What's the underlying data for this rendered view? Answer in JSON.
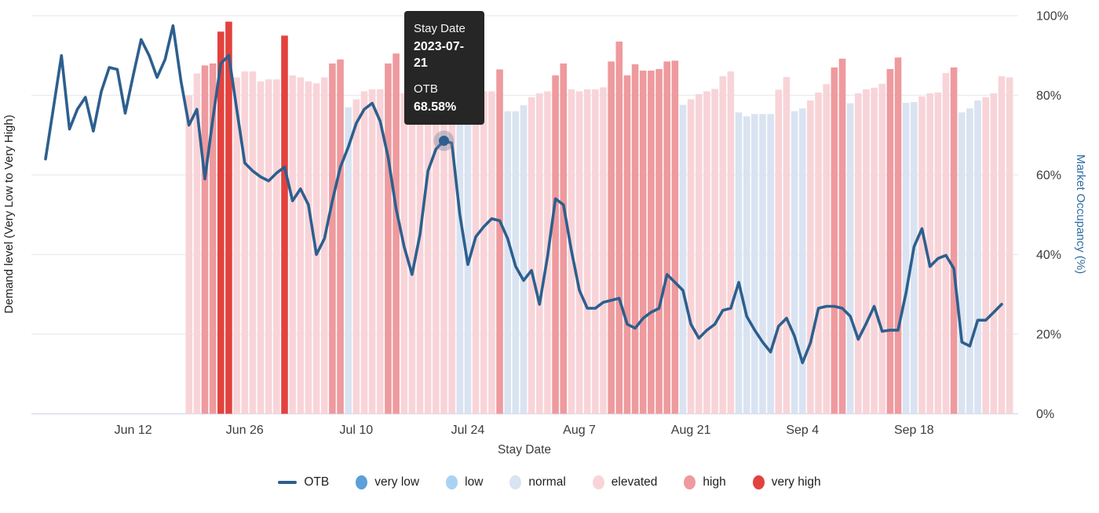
{
  "axes": {
    "left_label": "Demand level (Very Low to Very High)",
    "right_label": "Market Occupancy (%)",
    "x_label": "Stay Date",
    "x_ticks": [
      "Jun 12",
      "Jun 26",
      "Jul 10",
      "Jul 24",
      "Aug 7",
      "Aug 21",
      "Sep 4",
      "Sep 18"
    ],
    "y_ticks": [
      "0%",
      "20%",
      "40%",
      "60%",
      "80%",
      "100%"
    ]
  },
  "tooltip": {
    "title_label": "Stay Date",
    "date": "2023-07-21",
    "series_label": "OTB",
    "value": "68.58%"
  },
  "legend": {
    "otb_label": "OTB",
    "items": [
      {
        "id": "very_low",
        "label": "very low",
        "color": "#5ba0d8"
      },
      {
        "id": "low",
        "label": "low",
        "color": "#a9d2f2"
      },
      {
        "id": "normal",
        "label": "normal",
        "color": "#d9e3f1"
      },
      {
        "id": "elevated",
        "label": "elevated",
        "color": "#f8d4d8"
      },
      {
        "id": "high",
        "label": "high",
        "color": "#ee9a9e"
      },
      {
        "id": "very_high",
        "label": "very high",
        "color": "#e2423e"
      }
    ]
  },
  "colors": {
    "otb_line": "#2d5f8e",
    "right_axis_label": "#2e6da4",
    "gridline": "#ebebf0",
    "bottom_axis": "#d9dcea",
    "tooltip_bg": "#262626",
    "tick_text": "#3c3c3c",
    "very_low": "#5ba0d8",
    "low": "#a9d2f2",
    "normal": "#d9e3f1",
    "elevated": "#f8d4d8",
    "high": "#ee9a9e",
    "very_high": "#e2423e"
  },
  "chart_data": {
    "type": "combo",
    "description": "Daily hotel market demand-level bars (categorical color) with OTB occupancy line overlay",
    "x_axis": {
      "label": "Stay Date",
      "start_date": "2023-06-01",
      "end_date": "2023-09-30",
      "tick_labels": [
        "Jun 12",
        "Jun 26",
        "Jul 10",
        "Jul 24",
        "Aug 7",
        "Aug 21",
        "Sep 4",
        "Sep 18"
      ],
      "tick_day_offsets": [
        11,
        25,
        39,
        53,
        67,
        81,
        95,
        109
      ]
    },
    "y_right_axis": {
      "label": "Market Occupancy (%)",
      "range": [
        0,
        100
      ],
      "tick_values": [
        0,
        20,
        40,
        60,
        80,
        100
      ],
      "tick_labels": [
        "0%",
        "20%",
        "40%",
        "60%",
        "80%",
        "100%"
      ]
    },
    "y_left_axis": {
      "label": "Demand level (Very Low to Very High)",
      "categories": [
        "very low",
        "low",
        "normal",
        "elevated",
        "high",
        "very high"
      ]
    },
    "grid": "horizontal",
    "legend_position": "bottom",
    "line_series": {
      "name": "OTB",
      "unit": "%",
      "start_date": "2023-06-01",
      "start_day_offset": 0,
      "values": [
        64,
        77,
        90,
        71.5,
        76.5,
        79.5,
        71,
        81,
        87,
        86.5,
        75.5,
        85,
        94,
        90,
        84.5,
        89,
        97.5,
        83.5,
        72.5,
        76.5,
        59,
        74,
        88,
        90,
        76.5,
        63,
        61,
        59.5,
        58.5,
        60.5,
        62,
        53.5,
        56.5,
        52.5,
        40,
        44,
        53.5,
        62,
        67,
        73,
        76.5,
        78,
        73.5,
        64.5,
        51.5,
        42,
        35,
        45,
        61,
        66.5,
        68.58,
        68,
        50,
        37.5,
        44.5,
        47,
        49,
        48.5,
        44,
        37,
        33.5,
        36,
        27.5,
        39.5,
        54,
        52.5,
        41,
        31,
        26.5,
        26.5,
        28,
        28.5,
        29,
        22.5,
        21.5,
        24,
        25.5,
        26.5,
        35,
        33,
        31,
        22.5,
        19,
        21,
        22.5,
        26,
        26.5,
        33,
        24.5,
        21,
        18,
        15.5,
        22,
        24,
        19.5,
        12.8,
        17.8,
        26.5,
        27,
        27,
        26.5,
        24.5,
        18.7,
        22.7,
        27,
        20.7,
        21,
        21,
        30.4,
        42,
        46.5,
        37,
        39,
        39.8,
        36.5,
        18,
        17,
        23.5,
        23.5,
        25.5,
        27.5
      ]
    },
    "bar_series": {
      "name": "demand level (bar height = market occupancy %)",
      "start_date": "2023-06-19",
      "start_day_offset": 18,
      "levels": [
        "elevated",
        "elevated",
        "high",
        "high",
        "very_high",
        "very_high",
        "elevated",
        "elevated",
        "elevated",
        "elevated",
        "elevated",
        "elevated",
        "very_high",
        "elevated",
        "elevated",
        "elevated",
        "elevated",
        "elevated",
        "high",
        "high",
        "normal",
        "elevated",
        "elevated",
        "elevated",
        "elevated",
        "high",
        "high",
        "elevated",
        "elevated",
        "elevated",
        "elevated",
        "elevated",
        "elevated",
        "elevated",
        "normal",
        "normal",
        "elevated",
        "elevated",
        "elevated",
        "high",
        "normal",
        "normal",
        "normal",
        "elevated",
        "elevated",
        "elevated",
        "high",
        "high",
        "elevated",
        "elevated",
        "elevated",
        "elevated",
        "elevated",
        "high",
        "high",
        "high",
        "high",
        "high",
        "high",
        "high",
        "high",
        "high",
        "normal",
        "elevated",
        "elevated",
        "elevated",
        "elevated",
        "elevated",
        "elevated",
        "normal",
        "normal",
        "normal",
        "normal",
        "normal",
        "elevated",
        "elevated",
        "normal",
        "normal",
        "elevated",
        "elevated",
        "elevated",
        "high",
        "high",
        "normal",
        "elevated",
        "elevated",
        "elevated",
        "elevated",
        "high",
        "high",
        "normal",
        "normal",
        "elevated",
        "elevated",
        "elevated",
        "elevated",
        "high",
        "normal",
        "normal",
        "normal",
        "elevated",
        "elevated",
        "elevated",
        "elevated"
      ],
      "occupancy_values": [
        80,
        85.5,
        87.5,
        88,
        96,
        98.5,
        84.5,
        86,
        86,
        83.5,
        84,
        84,
        95,
        85,
        84.5,
        83.5,
        83,
        84.5,
        88,
        89,
        77,
        79,
        81,
        81.5,
        81.5,
        88,
        90.5,
        80.5,
        80.5,
        81,
        81,
        80.5,
        80.5,
        80.5,
        76,
        76.5,
        80.5,
        81,
        81,
        86.5,
        76,
        76,
        77.5,
        79.5,
        80.5,
        81,
        85,
        88,
        81.5,
        81,
        81.5,
        81.5,
        82,
        88.5,
        93.5,
        85,
        87.8,
        86.2,
        86.2,
        86.6,
        88.5,
        88.7,
        77.6,
        79,
        80.3,
        81,
        81.6,
        84.8,
        86,
        75.7,
        74.7,
        75.3,
        75.3,
        75.3,
        81.4,
        84.6,
        76,
        76.7,
        78.7,
        80.7,
        82.8,
        87,
        89.2,
        78,
        80.5,
        81.5,
        81.9,
        82.9,
        86.6,
        89.5,
        78.1,
        78.3,
        79.7,
        80.5,
        80.7,
        85.6,
        87,
        75.7,
        76.7,
        78.7,
        79.5,
        80.5,
        84.8,
        84.5
      ]
    },
    "highlight": {
      "date": "2023-07-21",
      "otb_value": 68.58,
      "day_offset": 50
    }
  }
}
